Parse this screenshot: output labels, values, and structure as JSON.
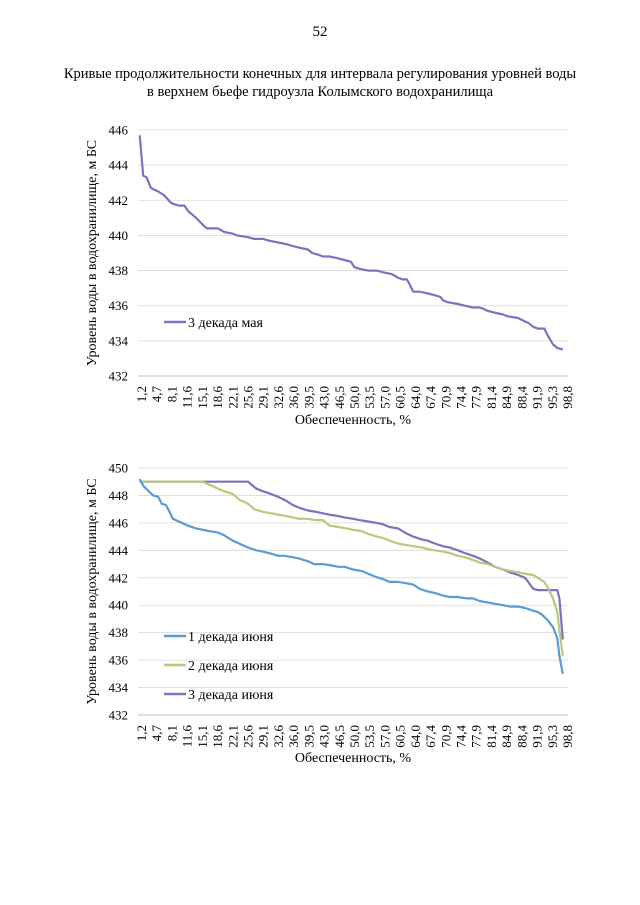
{
  "page": {
    "number": "52"
  },
  "figure": {
    "title_line1": "Кривые продолжительности конечных для интервала регулирования уровней воды",
    "title_line2": "в верхнем бьефе гидроузла Колымского водохранилища"
  },
  "chart_data": [
    {
      "type": "line",
      "xlabel": "Обеспеченность, %",
      "ylabel": "Уровень воды в водохранилище, м БС",
      "ylim": [
        432,
        446
      ],
      "y_ticks": [
        "432",
        "434",
        "436",
        "438",
        "440",
        "442",
        "444",
        "446"
      ],
      "x_ticks": [
        "1,2",
        "4,7",
        "8,1",
        "11,6",
        "15,1",
        "18,6",
        "22,1",
        "25,6",
        "29,1",
        "32,6",
        "36,0",
        "39,5",
        "43,0",
        "46,5",
        "50,0",
        "53,5",
        "57,0",
        "60,5",
        "64,0",
        "67,4",
        "70,9",
        "74,4",
        "77,9",
        "81,4",
        "84,9",
        "88,4",
        "91,9",
        "95,3",
        "98,8"
      ],
      "grid": "horizontal",
      "legend_position": "left",
      "series": [
        {
          "name": "3 декада мая",
          "color": "#7b72c0",
          "x": [
            0.4,
            1.2,
            2.0,
            3.0,
            4.7,
            6.0,
            7.5,
            8.1,
            9.5,
            10.8,
            11.6,
            13.5,
            15.1,
            16.0,
            17.5,
            18.6,
            20.0,
            22.1,
            23.0,
            25.6,
            27.0,
            29.1,
            30.5,
            32.6,
            34.5,
            36.0,
            37.5,
            39.5,
            40.5,
            42.0,
            43.0,
            44.5,
            46.5,
            48.0,
            49.5,
            50.3,
            51.5,
            53.5,
            55.5,
            57.0,
            59.0,
            60.5,
            61.5,
            62.5,
            63.2,
            64.0,
            65.5,
            67.4,
            69.0,
            70.3,
            70.9,
            72.0,
            74.4,
            76.0,
            77.9,
            79.5,
            80.5,
            81.4,
            83.0,
            84.9,
            86.0,
            88.4,
            90.0,
            90.9,
            91.9,
            93.0,
            94.5,
            95.3,
            96.5,
            97.5,
            98.8
          ],
          "y": [
            445.7,
            443.4,
            443.3,
            442.7,
            442.5,
            442.3,
            441.9,
            441.8,
            441.7,
            441.7,
            441.4,
            441.0,
            440.6,
            440.4,
            440.4,
            440.4,
            440.2,
            440.1,
            440.0,
            439.9,
            439.8,
            439.8,
            439.7,
            439.6,
            439.5,
            439.4,
            439.3,
            439.2,
            439.0,
            438.9,
            438.8,
            438.8,
            438.7,
            438.6,
            438.5,
            438.2,
            438.1,
            438.0,
            438.0,
            437.9,
            437.8,
            437.6,
            437.5,
            437.5,
            437.2,
            436.8,
            436.8,
            436.7,
            436.6,
            436.5,
            436.3,
            436.2,
            436.1,
            436.0,
            435.9,
            435.9,
            435.8,
            435.7,
            435.6,
            435.5,
            435.4,
            435.3,
            435.1,
            435.0,
            434.8,
            434.7,
            434.7,
            434.3,
            433.8,
            433.6,
            433.5
          ]
        }
      ]
    },
    {
      "type": "line",
      "xlabel": "Обеспеченность, %",
      "ylabel": "Уровень воды в водохранилище, м БС",
      "ylim": [
        432,
        450
      ],
      "y_ticks": [
        "432",
        "434",
        "436",
        "438",
        "440",
        "442",
        "444",
        "446",
        "448",
        "450"
      ],
      "x_ticks": [
        "1,2",
        "4,7",
        "8,1",
        "11,6",
        "15,1",
        "18,6",
        "22,1",
        "25,6",
        "29,1",
        "32,6",
        "36,0",
        "39,5",
        "43,0",
        "46,5",
        "50,0",
        "53,5",
        "57,0",
        "60,5",
        "64,0",
        "67,4",
        "70,9",
        "74,4",
        "77,9",
        "81,4",
        "84,9",
        "88,4",
        "91,9",
        "95,3",
        "98,8"
      ],
      "grid": "horizontal",
      "legend_position": "bottom-left",
      "series": [
        {
          "name": "1 декада июня",
          "color": "#5b9bd5",
          "x": [
            0.4,
            1.2,
            2.5,
            3.5,
            4.7,
            5.5,
            6.5,
            7.5,
            8.1,
            9.5,
            11.6,
            13.5,
            15.1,
            16.5,
            18.6,
            20.0,
            21.0,
            22.1,
            23.5,
            25.6,
            27.5,
            29.1,
            30.5,
            32.6,
            34.0,
            36.0,
            37.5,
            39.5,
            41.0,
            43.0,
            45.0,
            46.5,
            48.0,
            50.0,
            52.0,
            53.5,
            55.0,
            57.0,
            58.5,
            60.5,
            62.5,
            64.0,
            65.5,
            67.4,
            69.0,
            70.9,
            72.5,
            74.4,
            76.5,
            77.9,
            79.5,
            81.4,
            83.0,
            84.9,
            86.5,
            88.4,
            90.0,
            91.9,
            93.0,
            94.0,
            95.3,
            96.5,
            97.5,
            98.0,
            98.8
          ],
          "y": [
            449.2,
            448.7,
            448.3,
            448.0,
            447.9,
            447.4,
            447.3,
            446.7,
            446.3,
            446.1,
            445.8,
            445.6,
            445.5,
            445.4,
            445.3,
            445.1,
            444.9,
            444.7,
            444.5,
            444.2,
            444.0,
            443.9,
            443.8,
            443.6,
            443.6,
            443.5,
            443.4,
            443.2,
            443.0,
            443.0,
            442.9,
            442.8,
            442.8,
            442.6,
            442.5,
            442.3,
            442.1,
            441.9,
            441.7,
            441.7,
            441.6,
            441.5,
            441.2,
            441.0,
            440.9,
            440.7,
            440.6,
            440.6,
            440.5,
            440.5,
            440.3,
            440.2,
            440.1,
            440.0,
            439.9,
            439.9,
            439.8,
            439.6,
            439.5,
            439.3,
            438.9,
            438.4,
            437.6,
            436.3,
            435.0
          ]
        },
        {
          "name": "2 декада июня",
          "color": "#b3cc7a",
          "x": [
            0.4,
            2.0,
            5.0,
            10.0,
            15.1,
            16.5,
            18.6,
            20.0,
            22.1,
            23.5,
            25.6,
            27.0,
            28.0,
            29.1,
            31.0,
            32.6,
            34.5,
            36.0,
            37.5,
            39.5,
            41.0,
            43.0,
            44.5,
            46.5,
            48.5,
            50.0,
            52.0,
            53.5,
            55.5,
            57.0,
            58.5,
            60.5,
            62.0,
            64.0,
            66.0,
            67.4,
            69.0,
            70.9,
            72.5,
            74.4,
            76.0,
            77.9,
            79.5,
            81.4,
            83.0,
            84.9,
            86.5,
            88.4,
            90.0,
            91.9,
            93.0,
            94.5,
            95.3,
            96.5,
            97.5,
            98.0,
            98.8
          ],
          "y": [
            449.0,
            449.0,
            449.0,
            449.0,
            449.0,
            448.8,
            448.5,
            448.3,
            448.1,
            447.7,
            447.4,
            447.0,
            446.9,
            446.8,
            446.7,
            446.6,
            446.5,
            446.4,
            446.3,
            446.3,
            446.2,
            446.2,
            445.8,
            445.7,
            445.6,
            445.5,
            445.4,
            445.2,
            445.0,
            444.9,
            444.7,
            444.5,
            444.4,
            444.3,
            444.2,
            444.1,
            444.0,
            443.9,
            443.8,
            443.6,
            443.5,
            443.3,
            443.1,
            443.0,
            442.8,
            442.6,
            442.5,
            442.4,
            442.3,
            442.2,
            442.0,
            441.7,
            441.3,
            440.5,
            439.5,
            438.2,
            436.3
          ]
        },
        {
          "name": "3 декада июня",
          "color": "#7b72c0",
          "x": [
            0.4,
            2.0,
            5.0,
            10.0,
            15.0,
            20.0,
            25.6,
            27.5,
            29.1,
            31.0,
            32.6,
            34.5,
            36.0,
            37.5,
            39.5,
            41.5,
            43.0,
            44.5,
            46.5,
            48.0,
            50.0,
            51.5,
            53.5,
            55.5,
            57.0,
            58.5,
            60.5,
            62.0,
            64.0,
            66.0,
            67.4,
            69.0,
            70.9,
            72.5,
            74.4,
            76.0,
            77.9,
            79.5,
            81.4,
            83.0,
            84.9,
            86.5,
            88.4,
            90.0,
            90.5,
            91.9,
            93.0,
            95.3,
            96.5,
            97.5,
            98.0,
            98.8
          ],
          "y": [
            449.0,
            449.0,
            449.0,
            449.0,
            449.0,
            449.0,
            449.0,
            448.5,
            448.3,
            448.1,
            447.9,
            447.6,
            447.3,
            447.1,
            446.9,
            446.8,
            446.7,
            446.6,
            446.5,
            446.4,
            446.3,
            446.2,
            446.1,
            446.0,
            445.9,
            445.7,
            445.6,
            445.3,
            445.0,
            444.8,
            444.7,
            444.5,
            444.3,
            444.2,
            444.0,
            443.8,
            443.6,
            443.4,
            443.1,
            442.8,
            442.6,
            442.4,
            442.2,
            442.0,
            441.8,
            441.2,
            441.1,
            441.1,
            441.1,
            441.1,
            440.5,
            437.5
          ]
        }
      ]
    }
  ]
}
